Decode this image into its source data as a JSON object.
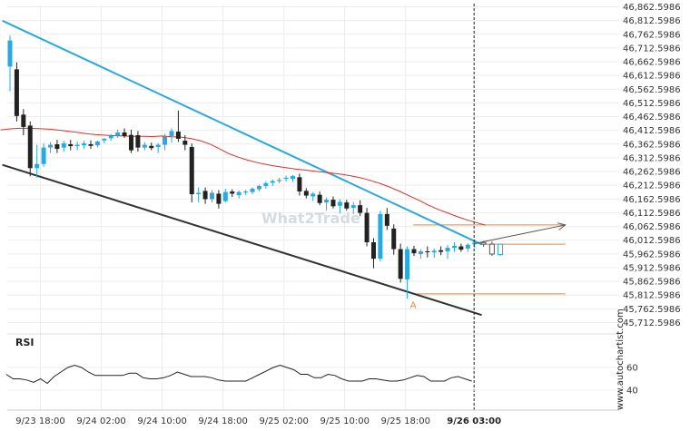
{
  "watermark": "What2Trade",
  "side_credit": "www.autochartist.com",
  "chart_data": {
    "type": "candlestick",
    "y_ticks": [
      "46,862.5986",
      "46,812.5986",
      "46,762.5986",
      "46,712.5986",
      "46,662.5986",
      "46,612.5986",
      "46,562.5986",
      "46,512.5986",
      "46,462.5986",
      "46,412.5986",
      "46,362.5986",
      "46,312.5986",
      "46,262.5986",
      "46,212.5986",
      "46,162.5986",
      "46,112.5986",
      "46,062.5986",
      "46,012.5986",
      "45,962.5986",
      "45,912.5986",
      "45,862.5986",
      "45,812.5986",
      "45,762.5986",
      "45,712.5986"
    ],
    "ylim": [
      45697.6,
      46867.6
    ],
    "x_labels": [
      {
        "text": "9/23 18:00",
        "t": 8
      },
      {
        "text": "9/24 02:00",
        "t": 24
      },
      {
        "text": "9/24 10:00",
        "t": 40
      },
      {
        "text": "9/24 18:00",
        "t": 56
      },
      {
        "text": "9/25 02:00",
        "t": 72
      },
      {
        "text": "9/25 10:00",
        "t": 88
      },
      {
        "text": "9/25 18:00",
        "t": 104
      },
      {
        "text": "9/26 03:00",
        "t": 122,
        "bold": true
      }
    ],
    "candles": [
      {
        "o": 46645,
        "h": 46758,
        "l": 46555,
        "c": 46740
      },
      {
        "o": 46635,
        "h": 46660,
        "l": 46445,
        "c": 46465
      },
      {
        "o": 46470,
        "h": 46490,
        "l": 46395,
        "c": 46425
      },
      {
        "o": 46430,
        "h": 46445,
        "l": 46245,
        "c": 46275
      },
      {
        "o": 46275,
        "h": 46360,
        "l": 46240,
        "c": 46290
      },
      {
        "o": 46290,
        "h": 46365,
        "l": 46280,
        "c": 46350
      },
      {
        "o": 46350,
        "h": 46370,
        "l": 46330,
        "c": 46360
      },
      {
        "o": 46362,
        "h": 46378,
        "l": 46330,
        "c": 46345
      },
      {
        "o": 46350,
        "h": 46375,
        "l": 46335,
        "c": 46365
      },
      {
        "o": 46362,
        "h": 46378,
        "l": 46340,
        "c": 46355
      },
      {
        "o": 46355,
        "h": 46372,
        "l": 46340,
        "c": 46360
      },
      {
        "o": 46358,
        "h": 46375,
        "l": 46345,
        "c": 46365
      },
      {
        "o": 46362,
        "h": 46376,
        "l": 46345,
        "c": 46356
      },
      {
        "o": 46358,
        "h": 46375,
        "l": 46350,
        "c": 46372
      },
      {
        "o": 46376,
        "h": 46385,
        "l": 46365,
        "c": 46382
      },
      {
        "o": 46384,
        "h": 46400,
        "l": 46375,
        "c": 46392
      },
      {
        "o": 46393,
        "h": 46415,
        "l": 46385,
        "c": 46405
      },
      {
        "o": 46405,
        "h": 46420,
        "l": 46385,
        "c": 46392
      },
      {
        "o": 46396,
        "h": 46415,
        "l": 46330,
        "c": 46340
      },
      {
        "o": 46395,
        "h": 46410,
        "l": 46335,
        "c": 46350
      },
      {
        "o": 46350,
        "h": 46370,
        "l": 46340,
        "c": 46360
      },
      {
        "o": 46356,
        "h": 46368,
        "l": 46340,
        "c": 46348
      },
      {
        "o": 46352,
        "h": 46366,
        "l": 46330,
        "c": 46360
      },
      {
        "o": 46360,
        "h": 46400,
        "l": 46340,
        "c": 46390
      },
      {
        "o": 46392,
        "h": 46420,
        "l": 46368,
        "c": 46410
      },
      {
        "o": 46408,
        "h": 46485,
        "l": 46370,
        "c": 46382
      },
      {
        "o": 46375,
        "h": 46395,
        "l": 46340,
        "c": 46360
      },
      {
        "o": 46352,
        "h": 46365,
        "l": 46150,
        "c": 46180
      },
      {
        "o": 46180,
        "h": 46205,
        "l": 46150,
        "c": 46185
      },
      {
        "o": 46192,
        "h": 46205,
        "l": 46145,
        "c": 46162
      },
      {
        "o": 46162,
        "h": 46195,
        "l": 46150,
        "c": 46185
      },
      {
        "o": 46182,
        "h": 46195,
        "l": 46128,
        "c": 46145
      },
      {
        "o": 46155,
        "h": 46200,
        "l": 46150,
        "c": 46188
      },
      {
        "o": 46190,
        "h": 46198,
        "l": 46170,
        "c": 46182
      },
      {
        "o": 46177,
        "h": 46193,
        "l": 46165,
        "c": 46188
      },
      {
        "o": 46186,
        "h": 46196,
        "l": 46178,
        "c": 46190
      },
      {
        "o": 46188,
        "h": 46205,
        "l": 46180,
        "c": 46200
      },
      {
        "o": 46198,
        "h": 46215,
        "l": 46190,
        "c": 46210
      },
      {
        "o": 46210,
        "h": 46228,
        "l": 46200,
        "c": 46220
      },
      {
        "o": 46222,
        "h": 46234,
        "l": 46210,
        "c": 46228
      },
      {
        "o": 46228,
        "h": 46240,
        "l": 46220,
        "c": 46232
      },
      {
        "o": 46236,
        "h": 46248,
        "l": 46226,
        "c": 46240
      },
      {
        "o": 46236,
        "h": 46250,
        "l": 46225,
        "c": 46246
      },
      {
        "o": 46242,
        "h": 46255,
        "l": 46175,
        "c": 46190
      },
      {
        "o": 46192,
        "h": 46202,
        "l": 46165,
        "c": 46175
      },
      {
        "o": 46172,
        "h": 46188,
        "l": 46155,
        "c": 46182
      },
      {
        "o": 46178,
        "h": 46190,
        "l": 46140,
        "c": 46148
      },
      {
        "o": 46150,
        "h": 46168,
        "l": 46120,
        "c": 46160
      },
      {
        "o": 46160,
        "h": 46172,
        "l": 46128,
        "c": 46136
      },
      {
        "o": 46138,
        "h": 46162,
        "l": 46110,
        "c": 46152
      },
      {
        "o": 46150,
        "h": 46160,
        "l": 46120,
        "c": 46128
      },
      {
        "o": 46130,
        "h": 46152,
        "l": 46108,
        "c": 46140
      },
      {
        "o": 46140,
        "h": 46158,
        "l": 46100,
        "c": 46112
      },
      {
        "o": 46112,
        "h": 46130,
        "l": 45990,
        "c": 46005
      },
      {
        "o": 46005,
        "h": 46020,
        "l": 45910,
        "c": 45945
      },
      {
        "o": 45945,
        "h": 46120,
        "l": 45935,
        "c": 46108
      },
      {
        "o": 46108,
        "h": 46130,
        "l": 46050,
        "c": 46065
      },
      {
        "o": 46055,
        "h": 46070,
        "l": 45960,
        "c": 45980
      },
      {
        "o": 45980,
        "h": 46000,
        "l": 45858,
        "c": 45872
      },
      {
        "o": 45870,
        "h": 45990,
        "l": 45800,
        "c": 45980
      },
      {
        "o": 45980,
        "h": 45992,
        "l": 45955,
        "c": 45965
      },
      {
        "o": 45962,
        "h": 45980,
        "l": 45945,
        "c": 45972
      },
      {
        "o": 45972,
        "h": 45990,
        "l": 45950,
        "c": 45970
      },
      {
        "o": 45968,
        "h": 45982,
        "l": 45948,
        "c": 45974
      },
      {
        "o": 45976,
        "h": 45990,
        "l": 45958,
        "c": 45970
      },
      {
        "o": 45972,
        "h": 45995,
        "l": 45945,
        "c": 45985
      },
      {
        "o": 45985,
        "h": 46005,
        "l": 45970,
        "c": 45992
      },
      {
        "o": 45990,
        "h": 46000,
        "l": 45970,
        "c": 45978
      },
      {
        "o": 45982,
        "h": 46002,
        "l": 45970,
        "c": 45996
      },
      {
        "o": 45998,
        "h": 46015,
        "l": 45985,
        "c": 46004
      }
    ],
    "projection_candles": [
      {
        "o": 46004,
        "h": 46010,
        "l": 45988,
        "c": 45998
      },
      {
        "o": 45998,
        "h": 46008,
        "l": 45955,
        "c": 45962
      },
      {
        "o": 45960,
        "h": 46000,
        "l": 45955,
        "c": 45998
      }
    ],
    "moving_average": [
      46414,
      46418,
      46420,
      46420,
      46419,
      46417,
      46414,
      46410,
      46406,
      46401,
      46397,
      46395,
      46393,
      46392,
      46391,
      46391,
      46390,
      46392,
      46389,
      46388,
      46383,
      46375,
      46363,
      46346,
      46328,
      46315,
      46304,
      46295,
      46288,
      46282,
      46277,
      46272,
      46268,
      46264,
      46260,
      46256,
      46252,
      46246,
      46239,
      46229,
      46218,
      46205,
      46190,
      46174,
      46158,
      46140,
      46125,
      46112,
      46099,
      46087,
      46077,
      46067
    ],
    "moving_average_start_index": -1,
    "channel_upper": [
      {
        "t": -2,
        "y": 46812
      },
      {
        "t": 124,
        "y": 45997
      }
    ],
    "channel_lower": [
      {
        "t": -2,
        "y": 46287
      },
      {
        "t": 124,
        "y": 45740
      }
    ],
    "pattern_point": {
      "label": "A",
      "t": 106,
      "y": 45812
    },
    "levels": [
      {
        "name": "resistance",
        "y": 46068,
        "t_start": 106,
        "t_end": 146
      },
      {
        "name": "breakout",
        "y": 45998,
        "t_start": 124,
        "t_end": 146
      },
      {
        "name": "support",
        "y": 45817,
        "t_start": 106,
        "t_end": 146
      }
    ],
    "forecast_arrow": {
      "t_start": 122,
      "y_start": 46000,
      "t_end": 146,
      "y_end": 46068
    },
    "current_time_t": 122,
    "rsi": {
      "label": "RSI",
      "ticks": [
        60,
        40
      ],
      "ylim": [
        24,
        88
      ],
      "values": [
        54,
        50,
        50,
        49,
        47,
        50,
        46,
        52,
        56,
        60,
        62,
        60,
        56,
        53,
        53,
        53,
        53,
        53,
        55,
        55,
        51,
        50,
        50,
        51,
        53,
        56,
        54,
        52,
        52,
        52,
        51,
        49,
        48,
        48,
        48,
        48,
        51,
        54,
        57,
        60,
        62,
        60,
        58,
        54,
        54,
        51,
        51,
        54,
        53,
        50,
        48,
        48,
        48,
        50,
        50,
        49,
        48,
        48,
        49,
        51,
        53,
        52,
        48,
        48,
        48,
        51,
        52,
        50,
        48
      ]
    }
  }
}
